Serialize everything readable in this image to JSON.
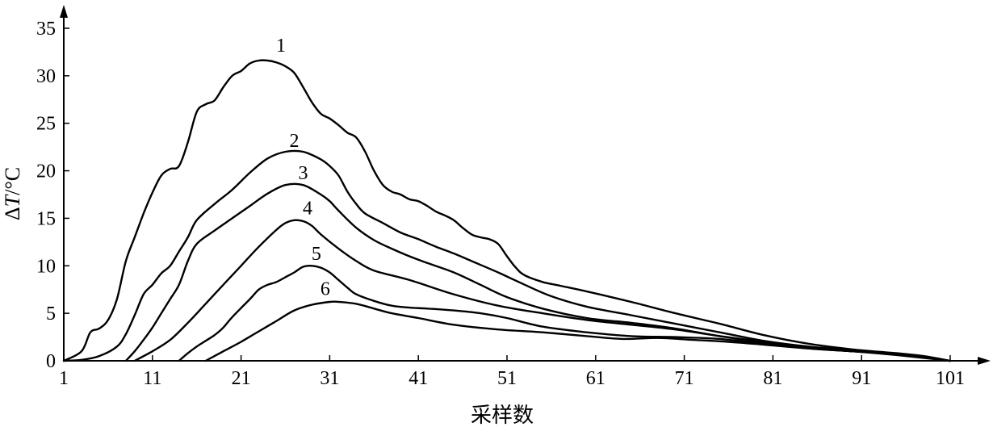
{
  "chart_data": {
    "type": "line",
    "xlabel": "采样数",
    "ylabel_delta": "Δ",
    "ylabel_var": "T",
    "ylabel_unit": "/°C",
    "xlim": [
      1,
      101
    ],
    "ylim": [
      0,
      35
    ],
    "xticks": [
      "1",
      "11",
      "21",
      "31",
      "41",
      "51",
      "61",
      "71",
      "81",
      "91",
      "101"
    ],
    "yticks": [
      "0",
      "5",
      "10",
      "15",
      "20",
      "25",
      "30",
      "35"
    ],
    "series": [
      {
        "name": "1",
        "label_at": [
          25.5,
          33.2
        ],
        "points": [
          [
            1,
            0
          ],
          [
            3,
            1
          ],
          [
            4,
            3
          ],
          [
            5,
            3.4
          ],
          [
            6,
            4.3
          ],
          [
            7,
            6.5
          ],
          [
            8,
            10.5
          ],
          [
            9,
            13
          ],
          [
            10,
            15.5
          ],
          [
            11,
            17.7
          ],
          [
            12,
            19.5
          ],
          [
            13,
            20.2
          ],
          [
            14,
            20.5
          ],
          [
            15,
            23
          ],
          [
            16,
            26.2
          ],
          [
            17,
            27
          ],
          [
            18,
            27.4
          ],
          [
            19,
            28.8
          ],
          [
            20,
            30
          ],
          [
            21,
            30.5
          ],
          [
            22,
            31.3
          ],
          [
            23,
            31.6
          ],
          [
            24,
            31.6
          ],
          [
            25,
            31.4
          ],
          [
            26,
            31
          ],
          [
            27,
            30.3
          ],
          [
            28,
            28.8
          ],
          [
            29,
            27.2
          ],
          [
            30,
            26
          ],
          [
            31,
            25.5
          ],
          [
            32,
            24.8
          ],
          [
            33,
            24
          ],
          [
            34,
            23.5
          ],
          [
            35,
            22
          ],
          [
            36,
            20
          ],
          [
            37,
            18.5
          ],
          [
            38,
            17.8
          ],
          [
            39,
            17.5
          ],
          [
            40,
            17
          ],
          [
            41,
            16.8
          ],
          [
            42,
            16.3
          ],
          [
            43,
            15.7
          ],
          [
            44,
            15.3
          ],
          [
            45,
            14.8
          ],
          [
            46,
            14
          ],
          [
            47,
            13.3
          ],
          [
            48,
            13
          ],
          [
            49,
            12.8
          ],
          [
            50,
            12.3
          ],
          [
            51,
            11
          ],
          [
            52,
            9.8
          ],
          [
            53,
            9
          ],
          [
            55,
            8.3
          ],
          [
            57,
            7.9
          ],
          [
            60,
            7.3
          ],
          [
            65,
            6.2
          ],
          [
            70,
            5
          ],
          [
            75,
            3.9
          ],
          [
            80,
            2.7
          ],
          [
            85,
            1.8
          ],
          [
            90,
            1.2
          ],
          [
            95,
            0.8
          ],
          [
            98,
            0.5
          ],
          [
            101,
            0
          ]
        ]
      },
      {
        "name": "2",
        "label_at": [
          27,
          23.2
        ],
        "points": [
          [
            1,
            0
          ],
          [
            3,
            0.1
          ],
          [
            5,
            0.5
          ],
          [
            7,
            1.5
          ],
          [
            8,
            2.8
          ],
          [
            9,
            4.8
          ],
          [
            10,
            7
          ],
          [
            11,
            8
          ],
          [
            12,
            9.2
          ],
          [
            13,
            10
          ],
          [
            14,
            11.5
          ],
          [
            15,
            13
          ],
          [
            16,
            14.8
          ],
          [
            18,
            16.5
          ],
          [
            20,
            18
          ],
          [
            22,
            19.8
          ],
          [
            24,
            21.3
          ],
          [
            26,
            22
          ],
          [
            28,
            22
          ],
          [
            30,
            21.2
          ],
          [
            31,
            20.5
          ],
          [
            32,
            19.5
          ],
          [
            33,
            17.8
          ],
          [
            34,
            16.5
          ],
          [
            35,
            15.5
          ],
          [
            37,
            14.5
          ],
          [
            39,
            13.5
          ],
          [
            41,
            12.8
          ],
          [
            43,
            12
          ],
          [
            45,
            11.3
          ],
          [
            47,
            10.5
          ],
          [
            50,
            9.3
          ],
          [
            53,
            8
          ],
          [
            56,
            6.8
          ],
          [
            60,
            5.7
          ],
          [
            65,
            4.8
          ],
          [
            70,
            3.9
          ],
          [
            75,
            3
          ],
          [
            80,
            2.1
          ],
          [
            85,
            1.5
          ],
          [
            90,
            1.1
          ],
          [
            95,
            0.7
          ],
          [
            101,
            0
          ]
        ]
      },
      {
        "name": "3",
        "label_at": [
          28,
          19.8
        ],
        "points": [
          [
            8,
            0
          ],
          [
            9,
            1
          ],
          [
            10,
            2.2
          ],
          [
            11,
            3.5
          ],
          [
            12,
            5
          ],
          [
            13,
            6.5
          ],
          [
            14,
            8
          ],
          [
            15,
            10.5
          ],
          [
            16,
            12.3
          ],
          [
            18,
            13.7
          ],
          [
            20,
            15
          ],
          [
            22,
            16.3
          ],
          [
            24,
            17.6
          ],
          [
            26,
            18.5
          ],
          [
            28,
            18.5
          ],
          [
            30,
            17.5
          ],
          [
            31,
            16.8
          ],
          [
            32,
            15.8
          ],
          [
            34,
            14
          ],
          [
            36,
            12.7
          ],
          [
            38,
            11.8
          ],
          [
            40,
            11
          ],
          [
            42,
            10.3
          ],
          [
            45,
            9.3
          ],
          [
            48,
            8
          ],
          [
            51,
            6.7
          ],
          [
            55,
            5.5
          ],
          [
            60,
            4.5
          ],
          [
            65,
            4
          ],
          [
            70,
            3.4
          ],
          [
            75,
            2.6
          ],
          [
            80,
            1.9
          ],
          [
            85,
            1.4
          ],
          [
            90,
            1
          ],
          [
            95,
            0.7
          ],
          [
            101,
            0
          ]
        ]
      },
      {
        "name": "4",
        "label_at": [
          28.5,
          16.1
        ],
        "points": [
          [
            9,
            0
          ],
          [
            11,
            1
          ],
          [
            13,
            2.2
          ],
          [
            15,
            4
          ],
          [
            17,
            6
          ],
          [
            19,
            8
          ],
          [
            21,
            10
          ],
          [
            23,
            12
          ],
          [
            25,
            13.8
          ],
          [
            26,
            14.5
          ],
          [
            27,
            14.8
          ],
          [
            28,
            14.7
          ],
          [
            29,
            14.2
          ],
          [
            30,
            13.3
          ],
          [
            32,
            11.8
          ],
          [
            34,
            10.5
          ],
          [
            36,
            9.5
          ],
          [
            40,
            8.5
          ],
          [
            45,
            7
          ],
          [
            50,
            5.8
          ],
          [
            55,
            5
          ],
          [
            60,
            4.3
          ],
          [
            65,
            3.8
          ],
          [
            70,
            3.3
          ],
          [
            75,
            2.6
          ],
          [
            80,
            2
          ],
          [
            85,
            1.4
          ],
          [
            90,
            1
          ],
          [
            95,
            0.7
          ],
          [
            101,
            0
          ]
        ]
      },
      {
        "name": "5",
        "label_at": [
          29.5,
          11.3
        ],
        "points": [
          [
            14,
            0
          ],
          [
            15,
            0.8
          ],
          [
            16,
            1.5
          ],
          [
            17,
            2.1
          ],
          [
            18,
            2.7
          ],
          [
            19,
            3.5
          ],
          [
            20,
            4.6
          ],
          [
            22,
            6.5
          ],
          [
            23,
            7.5
          ],
          [
            24,
            8
          ],
          [
            25,
            8.3
          ],
          [
            26,
            8.8
          ],
          [
            27,
            9.3
          ],
          [
            28,
            9.9
          ],
          [
            29,
            10
          ],
          [
            30,
            9.8
          ],
          [
            31,
            9.3
          ],
          [
            32,
            8.5
          ],
          [
            33,
            7.7
          ],
          [
            34,
            7
          ],
          [
            36,
            6.3
          ],
          [
            38,
            5.8
          ],
          [
            40,
            5.6
          ],
          [
            42,
            5.5
          ],
          [
            45,
            5.3
          ],
          [
            48,
            5
          ],
          [
            51,
            4.5
          ],
          [
            55,
            3.6
          ],
          [
            60,
            3
          ],
          [
            65,
            2.6
          ],
          [
            70,
            2.5
          ],
          [
            75,
            2.3
          ],
          [
            80,
            1.8
          ],
          [
            85,
            1.3
          ],
          [
            90,
            1
          ],
          [
            95,
            0.7
          ],
          [
            101,
            0
          ]
        ]
      },
      {
        "name": "6",
        "label_at": [
          30.5,
          7.6
        ],
        "points": [
          [
            17,
            0
          ],
          [
            19,
            1
          ],
          [
            21,
            2
          ],
          [
            23,
            3.1
          ],
          [
            25,
            4.2
          ],
          [
            27,
            5.3
          ],
          [
            29,
            5.9
          ],
          [
            31,
            6.2
          ],
          [
            32,
            6.2
          ],
          [
            34,
            6
          ],
          [
            36,
            5.5
          ],
          [
            38,
            5
          ],
          [
            41,
            4.5
          ],
          [
            45,
            3.8
          ],
          [
            50,
            3.3
          ],
          [
            55,
            3
          ],
          [
            60,
            2.6
          ],
          [
            64,
            2.3
          ],
          [
            68,
            2.4
          ],
          [
            72,
            2.2
          ],
          [
            76,
            2
          ],
          [
            80,
            1.7
          ],
          [
            85,
            1.3
          ],
          [
            90,
            1
          ],
          [
            95,
            0.6
          ],
          [
            101,
            0
          ]
        ]
      }
    ]
  }
}
